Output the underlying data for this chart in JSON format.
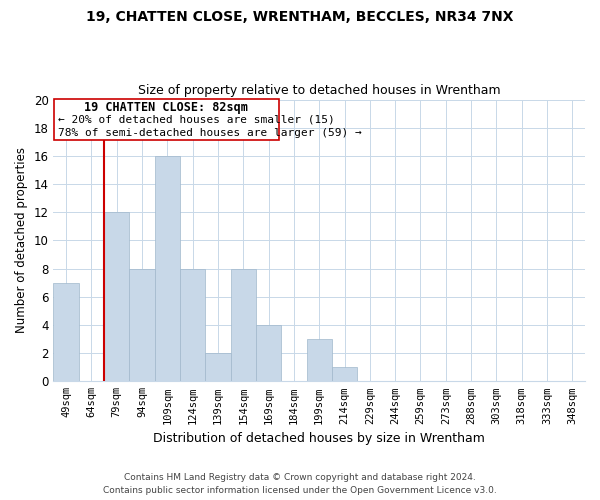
{
  "title1": "19, CHATTEN CLOSE, WRENTHAM, BECCLES, NR34 7NX",
  "title2": "Size of property relative to detached houses in Wrentham",
  "xlabel": "Distribution of detached houses by size in Wrentham",
  "ylabel": "Number of detached properties",
  "bar_color": "#c8d8e8",
  "bar_edge_color": "#a0b8cc",
  "categories": [
    "49sqm",
    "64sqm",
    "79sqm",
    "94sqm",
    "109sqm",
    "124sqm",
    "139sqm",
    "154sqm",
    "169sqm",
    "184sqm",
    "199sqm",
    "214sqm",
    "229sqm",
    "244sqm",
    "259sqm",
    "273sqm",
    "288sqm",
    "303sqm",
    "318sqm",
    "333sqm",
    "348sqm"
  ],
  "values": [
    7,
    0,
    12,
    8,
    16,
    8,
    2,
    8,
    4,
    0,
    3,
    1,
    0,
    0,
    0,
    0,
    0,
    0,
    0,
    0,
    0
  ],
  "ylim": [
    0,
    20
  ],
  "yticks": [
    0,
    2,
    4,
    6,
    8,
    10,
    12,
    14,
    16,
    18,
    20
  ],
  "property_line_x": 1.5,
  "property_line_label": "19 CHATTEN CLOSE: 82sqm",
  "annotation_line1": "← 20% of detached houses are smaller (15)",
  "annotation_line2": "78% of semi-detached houses are larger (59) →",
  "box_color": "#ffffff",
  "box_edge_color": "#cc0000",
  "line_color": "#cc0000",
  "footer1": "Contains HM Land Registry data © Crown copyright and database right 2024.",
  "footer2": "Contains public sector information licensed under the Open Government Licence v3.0."
}
